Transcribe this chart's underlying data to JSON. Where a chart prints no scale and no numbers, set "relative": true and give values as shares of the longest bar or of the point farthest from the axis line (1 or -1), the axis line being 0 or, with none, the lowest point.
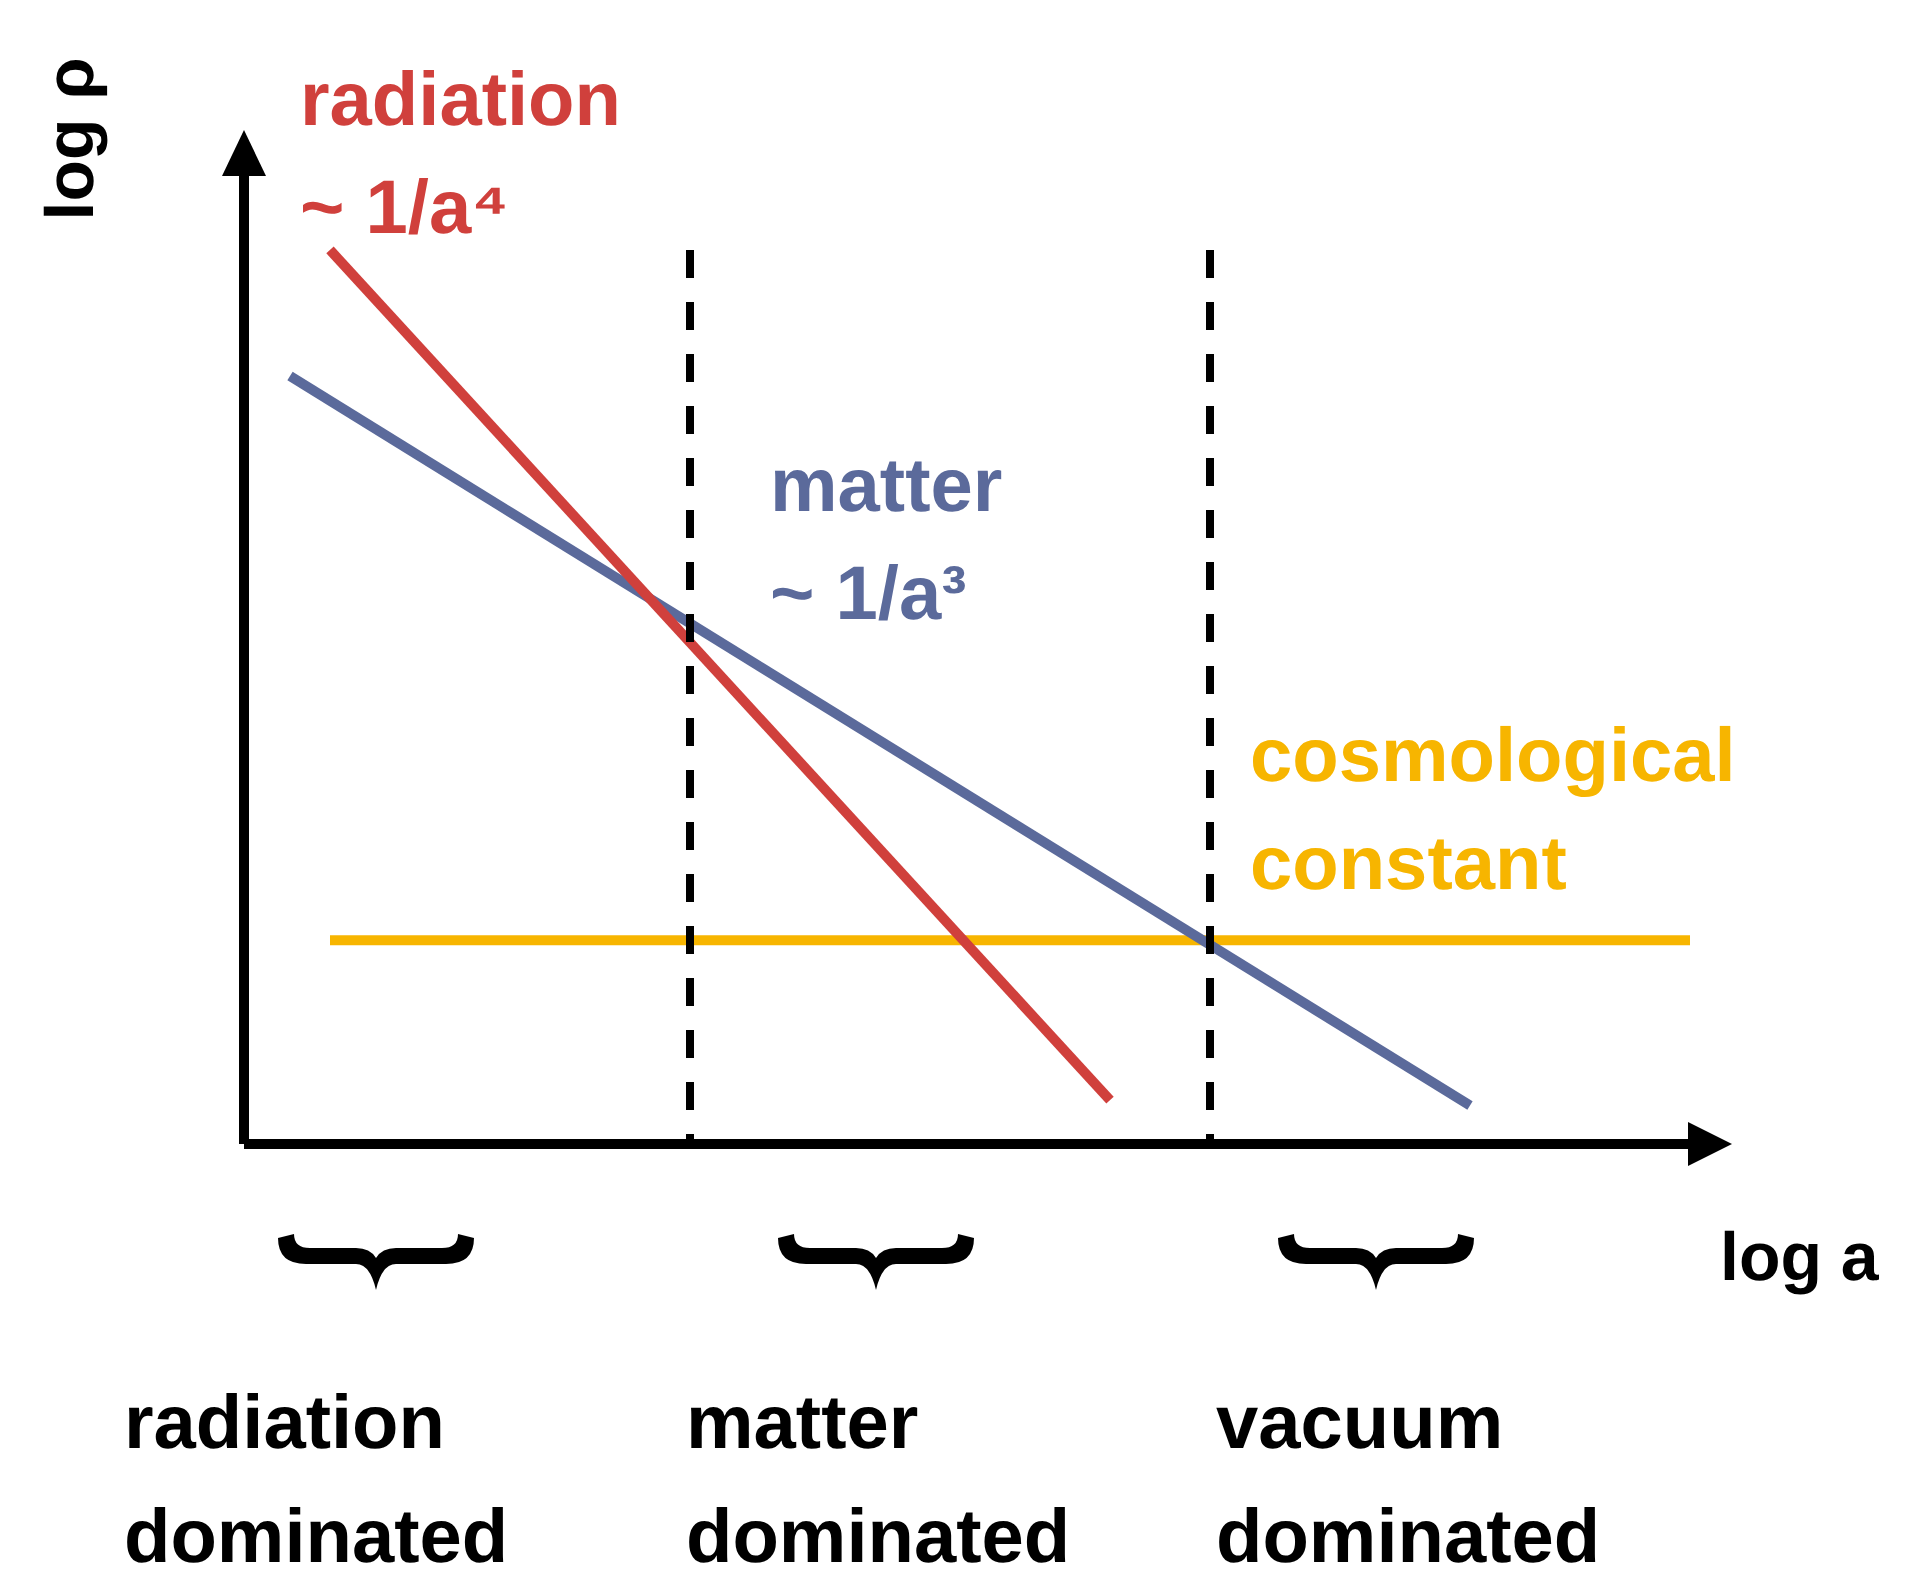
{
  "chart_data": {
    "type": "line",
    "relative": true,
    "xlabel": "log a",
    "ylabel": "log ρ",
    "legend": false,
    "marker": "none",
    "categories": [
      null,
      null,
      null,
      null,
      null,
      null,
      null,
      null,
      null,
      null,
      null,
      null,
      null,
      null,
      null,
      null,
      null,
      null,
      null,
      null,
      null,
      null,
      null,
      null,
      null,
      null,
      null,
      null,
      null,
      null,
      null,
      null,
      null,
      null,
      null,
      null,
      null,
      null,
      null,
      null,
      null,
      null,
      null,
      null,
      null,
      null,
      null,
      null,
      null,
      null,
      null,
      null,
      null,
      null,
      null,
      null,
      null,
      null,
      null,
      null,
      null,
      null,
      null,
      null,
      null,
      null,
      null,
      null,
      null,
      null,
      null
    ],
    "series": [
      {
        "name": "radiation ~ 1/a⁴",
        "color": "#d0403c",
        "values": [
          null,
          null,
          1,
          null,
          null,
          null,
          null,
          null,
          null,
          null,
          null,
          null,
          null,
          null,
          null,
          null,
          null,
          null,
          null,
          null,
          null,
          null,
          null,
          null,
          null,
          null,
          null,
          null,
          null,
          null,
          null,
          null,
          null,
          null,
          null,
          null,
          null,
          null,
          null,
          null,
          null,
          0.049,
          null,
          null,
          null,
          null,
          null,
          null,
          null,
          null,
          null,
          null,
          null,
          null,
          null,
          null,
          null,
          null,
          null,
          null,
          null,
          null,
          null,
          null,
          null,
          null,
          null,
          null,
          null,
          null,
          null
        ]
      },
      {
        "name": "matter ~ 1/a³",
        "color": "#5b6a9b",
        "values": [
          0.859,
          null,
          null,
          null,
          null,
          null,
          null,
          null,
          null,
          null,
          null,
          null,
          null,
          null,
          null,
          null,
          null,
          null,
          null,
          null,
          null,
          null,
          null,
          null,
          null,
          null,
          null,
          null,
          null,
          null,
          null,
          null,
          null,
          null,
          null,
          null,
          null,
          null,
          null,
          null,
          null,
          null,
          null,
          null,
          null,
          null,
          null,
          null,
          null,
          null,
          null,
          null,
          null,
          null,
          null,
          null,
          null,
          null,
          null,
          0.043,
          null,
          null,
          null,
          null,
          null,
          null,
          null,
          null,
          null,
          null,
          null
        ]
      },
      {
        "name": "cosmological constant",
        "color": "#f7b500",
        "values": [
          null,
          null,
          0.228,
          null,
          null,
          null,
          null,
          null,
          null,
          null,
          null,
          null,
          null,
          null,
          null,
          null,
          null,
          null,
          null,
          null,
          null,
          null,
          null,
          null,
          null,
          null,
          null,
          null,
          null,
          null,
          null,
          null,
          null,
          null,
          null,
          null,
          null,
          null,
          null,
          null,
          null,
          null,
          null,
          null,
          null,
          null,
          null,
          null,
          null,
          null,
          null,
          null,
          null,
          null,
          null,
          null,
          null,
          null,
          null,
          null,
          null,
          null,
          null,
          null,
          null,
          null,
          null,
          null,
          null,
          null,
          0.228
        ]
      }
    ],
    "annotations": [
      "radiation dominated",
      "matter dominated",
      "vacuum dominated"
    ]
  }
}
